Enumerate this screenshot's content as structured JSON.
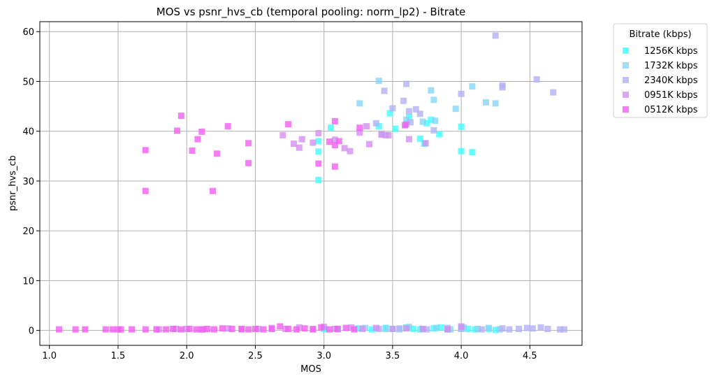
{
  "chart_data": {
    "type": "scatter",
    "title": "MOS vs psnr_hvs_cb (temporal pooling: norm_lp2) - Bitrate",
    "xlabel": "MOS",
    "ylabel": "psnr_hvs_cb",
    "xlim": [
      0.93,
      4.88
    ],
    "ylim": [
      -3,
      62
    ],
    "xticks": [
      1.0,
      1.5,
      2.0,
      2.5,
      3.0,
      3.5,
      4.0,
      4.5
    ],
    "xtick_labels": [
      "1.0",
      "1.5",
      "2.0",
      "2.5",
      "3.0",
      "3.5",
      "4.0",
      "4.5"
    ],
    "yticks": [
      0,
      10,
      20,
      30,
      40,
      50,
      60
    ],
    "ytick_labels": [
      "0",
      "10",
      "20",
      "30",
      "40",
      "50",
      "60"
    ],
    "grid": true,
    "marker": "square",
    "legend": {
      "title": "Bitrate (kbps)",
      "placement": "outside-top-right"
    },
    "series": [
      {
        "name": "1256K kbps",
        "color": "#40ffff",
        "points": [
          [
            2.96,
            30.2
          ],
          [
            2.96,
            35.9
          ],
          [
            2.96,
            38.0
          ],
          [
            3.05,
            40.7
          ],
          [
            3.4,
            41.0
          ],
          [
            3.48,
            43.6
          ],
          [
            3.52,
            40.5
          ],
          [
            3.62,
            42.8
          ],
          [
            3.7,
            38.5
          ],
          [
            3.73,
            37.5
          ],
          [
            3.75,
            41.6
          ],
          [
            3.78,
            42.3
          ],
          [
            3.84,
            39.4
          ],
          [
            4.0,
            36.0
          ],
          [
            4.0,
            40.9
          ],
          [
            4.08,
            35.8
          ],
          [
            3.0,
            0.3
          ],
          [
            3.1,
            0.2
          ],
          [
            3.25,
            0.4
          ],
          [
            3.35,
            0.2
          ],
          [
            3.5,
            0.3
          ],
          [
            3.6,
            0.6
          ],
          [
            3.7,
            0.2
          ],
          [
            3.8,
            0.4
          ],
          [
            3.9,
            0.2
          ],
          [
            4.0,
            0.5
          ],
          [
            4.1,
            0.2
          ],
          [
            4.2,
            0.3
          ],
          [
            4.25,
            0.1
          ],
          [
            3.45,
            0.5
          ],
          [
            3.65,
            0.3
          ],
          [
            3.85,
            0.6
          ],
          [
            4.05,
            0.3
          ]
        ]
      },
      {
        "name": "1732K kbps",
        "color": "#86d6f6",
        "points": [
          [
            3.26,
            45.6
          ],
          [
            3.4,
            50.1
          ],
          [
            3.6,
            42.3
          ],
          [
            3.72,
            41.9
          ],
          [
            3.78,
            48.2
          ],
          [
            3.8,
            46.3
          ],
          [
            3.81,
            42.1
          ],
          [
            3.96,
            44.5
          ],
          [
            4.08,
            49.0
          ],
          [
            4.18,
            45.8
          ],
          [
            4.25,
            45.6
          ],
          [
            3.3,
            0.5
          ],
          [
            3.45,
            0.3
          ],
          [
            3.55,
            0.2
          ],
          [
            3.62,
            0.7
          ],
          [
            3.72,
            0.3
          ],
          [
            3.82,
            0.5
          ],
          [
            3.92,
            0.2
          ],
          [
            4.02,
            0.6
          ],
          [
            4.12,
            0.3
          ],
          [
            4.2,
            0.5
          ],
          [
            4.28,
            0.2
          ]
        ]
      },
      {
        "name": "2340K kbps",
        "color": "#b2b2f5",
        "points": [
          [
            3.38,
            41.6
          ],
          [
            3.42,
            39.5
          ],
          [
            3.44,
            48.1
          ],
          [
            3.45,
            39.2
          ],
          [
            3.5,
            44.6
          ],
          [
            3.58,
            46.1
          ],
          [
            3.6,
            49.5
          ],
          [
            3.62,
            44.0
          ],
          [
            3.63,
            41.8
          ],
          [
            3.67,
            44.4
          ],
          [
            3.7,
            43.5
          ],
          [
            3.8,
            40.2
          ],
          [
            4.0,
            47.5
          ],
          [
            4.25,
            59.2
          ],
          [
            4.3,
            49.2
          ],
          [
            4.3,
            48.8
          ],
          [
            4.55,
            50.4
          ],
          [
            4.67,
            47.8
          ],
          [
            3.4,
            0.3
          ],
          [
            3.55,
            0.4
          ],
          [
            3.75,
            0.2
          ],
          [
            3.9,
            0.5
          ],
          [
            4.0,
            0.3
          ],
          [
            4.15,
            0.2
          ],
          [
            4.3,
            0.4
          ],
          [
            4.35,
            0.2
          ],
          [
            4.42,
            0.3
          ],
          [
            4.48,
            0.5
          ],
          [
            4.52,
            0.4
          ],
          [
            4.58,
            0.6
          ],
          [
            4.63,
            0.3
          ],
          [
            4.72,
            0.2
          ],
          [
            4.75,
            0.2
          ]
        ]
      },
      {
        "name": "0951K kbps",
        "color": "#d58ef0",
        "points": [
          [
            2.7,
            39.2
          ],
          [
            2.78,
            37.5
          ],
          [
            2.82,
            36.7
          ],
          [
            2.84,
            38.4
          ],
          [
            2.92,
            37.7
          ],
          [
            2.96,
            39.6
          ],
          [
            3.08,
            38.3
          ],
          [
            3.15,
            36.6
          ],
          [
            3.19,
            36.0
          ],
          [
            3.26,
            39.7
          ],
          [
            3.31,
            41.0
          ],
          [
            3.33,
            37.4
          ],
          [
            3.42,
            39.3
          ],
          [
            3.47,
            39.2
          ],
          [
            3.6,
            41.4
          ],
          [
            3.62,
            38.4
          ],
          [
            3.74,
            37.6
          ],
          [
            1.8,
            0.2
          ],
          [
            1.92,
            0.3
          ],
          [
            2.0,
            0.3
          ],
          [
            2.12,
            0.2
          ],
          [
            2.3,
            0.4
          ],
          [
            2.4,
            0.2
          ],
          [
            2.52,
            0.3
          ],
          [
            2.62,
            0.5
          ],
          [
            2.72,
            0.3
          ],
          [
            2.82,
            0.6
          ],
          [
            2.92,
            0.3
          ],
          [
            3.0,
            0.7
          ],
          [
            3.08,
            0.3
          ],
          [
            3.2,
            0.6
          ],
          [
            3.28,
            0.3
          ],
          [
            3.38,
            0.5
          ],
          [
            3.5,
            0.3
          ],
          [
            3.6,
            0.4
          ],
          [
            3.72,
            0.3
          ],
          [
            3.9,
            0.2
          ],
          [
            4.0,
            0.8
          ]
        ]
      },
      {
        "name": "0512K kbps",
        "color": "#f25ef2",
        "points": [
          [
            1.7,
            36.2
          ],
          [
            1.7,
            28.0
          ],
          [
            1.93,
            40.1
          ],
          [
            1.96,
            43.1
          ],
          [
            2.04,
            36.1
          ],
          [
            2.08,
            38.4
          ],
          [
            2.11,
            39.9
          ],
          [
            2.19,
            28.0
          ],
          [
            2.22,
            35.5
          ],
          [
            2.3,
            41.0
          ],
          [
            2.45,
            37.6
          ],
          [
            2.45,
            33.6
          ],
          [
            2.74,
            41.4
          ],
          [
            2.96,
            33.5
          ],
          [
            3.04,
            37.9
          ],
          [
            3.08,
            42.0
          ],
          [
            3.08,
            37.2
          ],
          [
            3.08,
            32.9
          ],
          [
            3.11,
            38.0
          ],
          [
            3.26,
            40.7
          ],
          [
            3.59,
            41.2
          ],
          [
            1.07,
            0.2
          ],
          [
            1.19,
            0.2
          ],
          [
            1.26,
            0.2
          ],
          [
            1.41,
            0.2
          ],
          [
            1.46,
            0.2
          ],
          [
            1.5,
            0.2
          ],
          [
            1.52,
            0.2
          ],
          [
            1.6,
            0.2
          ],
          [
            1.7,
            0.2
          ],
          [
            1.78,
            0.2
          ],
          [
            1.85,
            0.2
          ],
          [
            1.9,
            0.3
          ],
          [
            1.96,
            0.2
          ],
          [
            2.02,
            0.3
          ],
          [
            2.07,
            0.2
          ],
          [
            2.11,
            0.2
          ],
          [
            2.15,
            0.3
          ],
          [
            2.2,
            0.2
          ],
          [
            2.26,
            0.4
          ],
          [
            2.33,
            0.3
          ],
          [
            2.4,
            0.3
          ],
          [
            2.45,
            0.2
          ],
          [
            2.5,
            0.3
          ],
          [
            2.56,
            0.2
          ],
          [
            2.62,
            0.3
          ],
          [
            2.68,
            0.8
          ],
          [
            2.74,
            0.3
          ],
          [
            2.8,
            0.2
          ],
          [
            2.86,
            0.4
          ],
          [
            2.92,
            0.2
          ],
          [
            2.98,
            0.6
          ],
          [
            3.04,
            0.2
          ],
          [
            3.1,
            0.3
          ],
          [
            3.16,
            0.5
          ],
          [
            3.22,
            0.2
          ]
        ]
      }
    ]
  }
}
